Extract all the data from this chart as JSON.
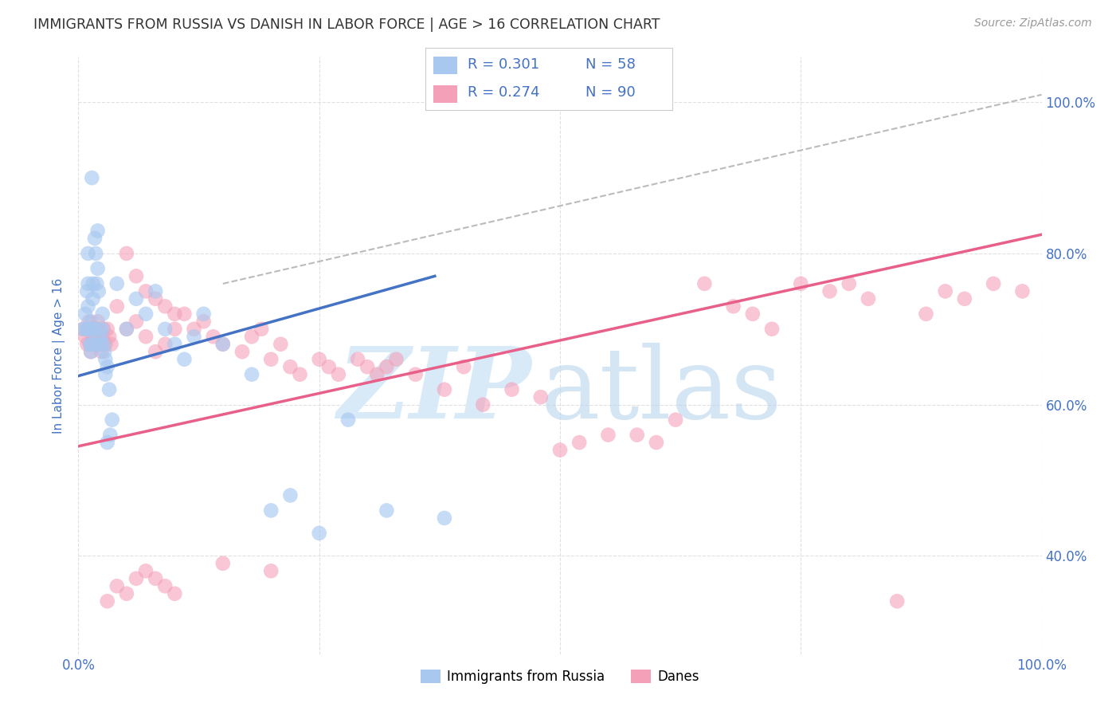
{
  "title": "IMMIGRANTS FROM RUSSIA VS DANISH IN LABOR FORCE | AGE > 16 CORRELATION CHART",
  "source": "Source: ZipAtlas.com",
  "ylabel": "In Labor Force | Age > 16",
  "blue_color": "#A8C8F0",
  "pink_color": "#F4A0B8",
  "blue_line_color": "#4472C4",
  "pink_line_color": "#E8608A",
  "dashed_line_color": "#BBBBBB",
  "background_color": "#FFFFFF",
  "grid_color": "#DDDDDD",
  "title_color": "#333333",
  "axis_label_color": "#4472C4",
  "blue_line_x0": 0.0,
  "blue_line_y0": 0.638,
  "blue_line_x1": 0.37,
  "blue_line_y1": 0.77,
  "pink_line_x0": 0.0,
  "pink_line_y0": 0.545,
  "pink_line_x1": 1.0,
  "pink_line_y1": 0.825,
  "dash_line_x0": 0.15,
  "dash_line_y0": 0.76,
  "dash_line_x1": 1.0,
  "dash_line_y1": 1.01,
  "ylim_min": 0.27,
  "ylim_max": 1.06,
  "xlim_min": 0.0,
  "xlim_max": 1.0,
  "yticks": [
    0.4,
    0.6,
    0.8,
    1.0
  ],
  "ytick_labels": [
    "40.0%",
    "60.0%",
    "80.0%",
    "100.0%"
  ]
}
